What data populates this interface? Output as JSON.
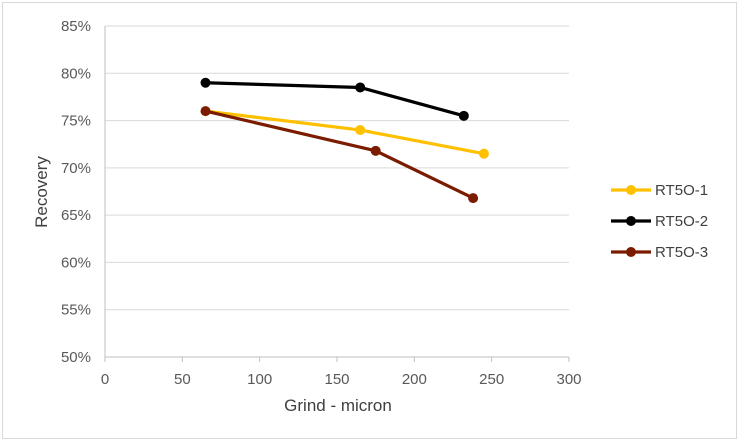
{
  "chart_data": {
    "type": "line",
    "xlabel": "Grind - micron",
    "ylabel": "Recovery",
    "xlim": [
      0,
      300
    ],
    "ylim": [
      50,
      85
    ],
    "x_ticks": [
      "0",
      "50",
      "100",
      "150",
      "200",
      "250",
      "300"
    ],
    "y_ticks": [
      "50%",
      "55%",
      "60%",
      "65%",
      "70%",
      "75%",
      "80%",
      "85%"
    ],
    "grid": "horizontal",
    "legend_position": "right",
    "series": [
      {
        "name": "RT5O-1",
        "color": "#ffc000",
        "points": [
          [
            65,
            76.0
          ],
          [
            165,
            74.0
          ],
          [
            245,
            71.5
          ]
        ]
      },
      {
        "name": "RT5O-2",
        "color": "#000000",
        "points": [
          [
            65,
            79.0
          ],
          [
            165,
            78.5
          ],
          [
            232,
            75.5
          ]
        ]
      },
      {
        "name": "RT5O-3",
        "color": "#7b1c00",
        "points": [
          [
            65,
            76.0
          ],
          [
            175,
            71.8
          ],
          [
            238,
            66.8
          ]
        ]
      }
    ]
  }
}
